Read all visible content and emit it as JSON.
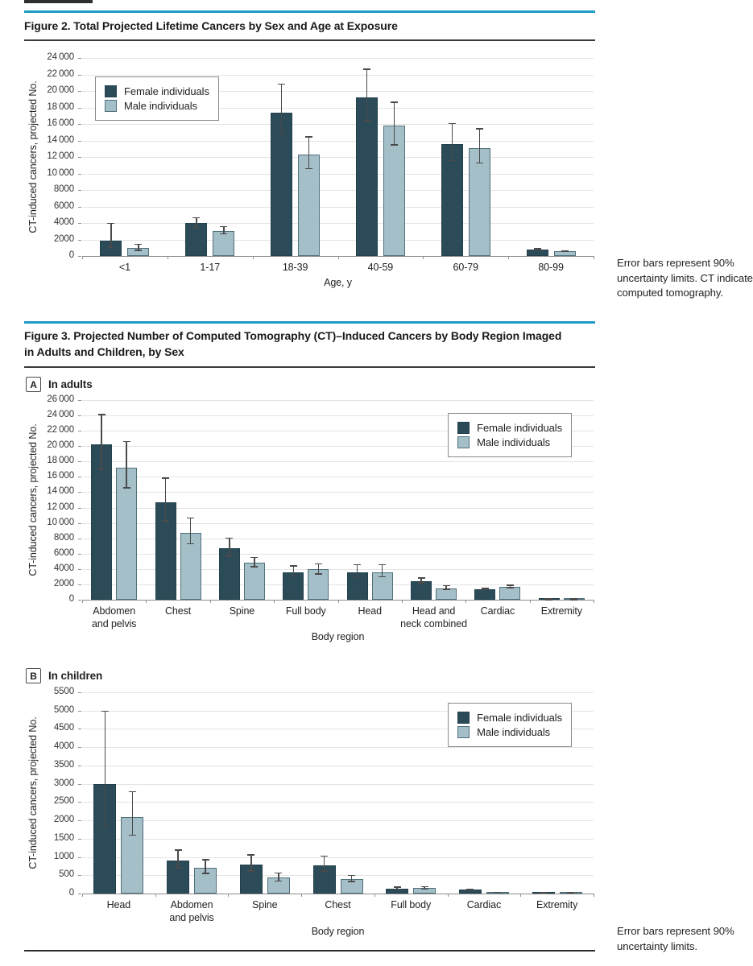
{
  "colors": {
    "accent_rule": "#1e9bc5",
    "female_bar": "#2c4b58",
    "male_bar": "#a4bfc7",
    "error_bar": "#4a4a4a",
    "gridline": "#e4e4e4"
  },
  "figure2": {
    "title": "Figure 2. Total Projected Lifetime Cancers by Sex and Age at Exposure",
    "caption_lines": [
      "Error bars represent 90%",
      "uncertainty limits. CT indicates",
      "computed tomography."
    ]
  },
  "figure3": {
    "title_line1": "Figure 3. Projected Number of Computed Tomography (CT)–Induced Cancers by Body Region Imaged",
    "title_line2": "in Adults and Children, by Sex",
    "panel_a": {
      "letter": "A",
      "title": "In adults"
    },
    "panel_b": {
      "letter": "B",
      "title": "In children"
    },
    "caption_lines": [
      "Error bars represent 90%",
      "uncertainty limits."
    ]
  },
  "chart_data": [
    {
      "id": "fig2",
      "type": "bar",
      "title": "Total projected lifetime cancers by sex and age at exposure",
      "xlabel": "Age, y",
      "ylabel": "CT-induced cancers, projected No.",
      "ylim": [
        0,
        24000
      ],
      "ytick_step": 2000,
      "grid": true,
      "legend_position": "top-left",
      "categories": [
        "<1",
        "1-17",
        "18-39",
        "40-59",
        "60-79",
        "80-99"
      ],
      "series": [
        {
          "name": "Female individuals",
          "values": [
            1900,
            4000,
            17400,
            19200,
            13600,
            800
          ],
          "err_low": [
            950,
            3300,
            14600,
            16300,
            11500,
            680
          ],
          "err_high": [
            4050,
            4700,
            20900,
            22700,
            16100,
            930
          ]
        },
        {
          "name": "Male individuals",
          "values": [
            950,
            3000,
            12300,
            15800,
            13100,
            600
          ],
          "err_low": [
            600,
            2600,
            10500,
            13400,
            11200,
            500
          ],
          "err_high": [
            1500,
            3650,
            14500,
            18700,
            15500,
            720
          ]
        }
      ]
    },
    {
      "id": "fig3a",
      "type": "bar",
      "title": "In adults",
      "xlabel": "Body region",
      "ylabel": "CT-induced cancers, projected No.",
      "ylim": [
        0,
        26000
      ],
      "ytick_step": 2000,
      "grid": true,
      "legend_position": "top-right",
      "categories": [
        "Abdomen\nand pelvis",
        "Chest",
        "Spine",
        "Full body",
        "Head",
        "Head and\nneck combined",
        "Cardiac",
        "Extremity"
      ],
      "series": [
        {
          "name": "Female individuals",
          "values": [
            20200,
            12700,
            6700,
            3600,
            3600,
            2400,
            1400,
            60
          ],
          "err_low": [
            16900,
            10200,
            5600,
            3000,
            2800,
            2100,
            1300,
            40
          ],
          "err_high": [
            24200,
            15900,
            8100,
            4500,
            4650,
            2900,
            1550,
            90
          ]
        },
        {
          "name": "Male individuals",
          "values": [
            17200,
            8700,
            4800,
            3950,
            3600,
            1500,
            1700,
            60
          ],
          "err_low": [
            14500,
            7200,
            4200,
            3300,
            2900,
            1300,
            1500,
            40
          ],
          "err_high": [
            20700,
            10700,
            5600,
            4750,
            4650,
            1900,
            1950,
            90
          ]
        }
      ]
    },
    {
      "id": "fig3b",
      "type": "bar",
      "title": "In children",
      "xlabel": "Body region",
      "ylabel": "CT-induced cancers, projected No.",
      "ylim": [
        0,
        5500
      ],
      "ytick_step": 500,
      "grid": true,
      "legend_position": "top-right",
      "categories": [
        "Head",
        "Abdomen\nand pelvis",
        "Spine",
        "Chest",
        "Full body",
        "Cardiac",
        "Extremity"
      ],
      "series": [
        {
          "name": "Female individuals",
          "values": [
            3000,
            910,
            790,
            780,
            140,
            110,
            15
          ],
          "err_low": [
            1800,
            690,
            600,
            600,
            105,
            85,
            8
          ],
          "err_high": [
            5000,
            1200,
            1070,
            1040,
            190,
            140,
            25
          ]
        },
        {
          "name": "Male individuals",
          "values": [
            2100,
            700,
            450,
            390,
            150,
            30,
            15
          ],
          "err_low": [
            1580,
            530,
            320,
            310,
            110,
            20,
            8
          ],
          "err_high": [
            2800,
            940,
            580,
            510,
            200,
            45,
            25
          ]
        }
      ]
    }
  ]
}
